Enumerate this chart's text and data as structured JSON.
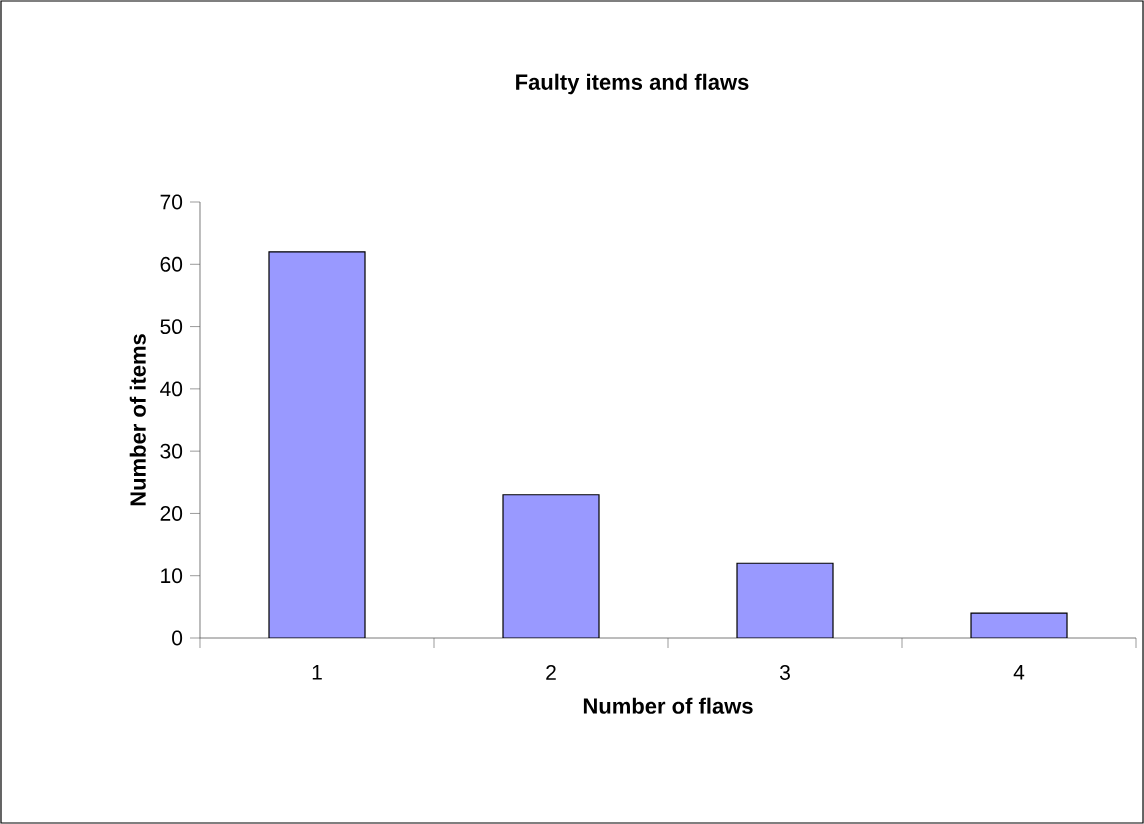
{
  "chart_data": {
    "type": "bar",
    "title": "Faulty items and flaws",
    "xlabel": "Number of flaws",
    "ylabel": "Number of items",
    "categories": [
      "1",
      "2",
      "3",
      "4"
    ],
    "values": [
      62,
      23,
      12,
      4
    ],
    "color": "#9999ff",
    "ylim": [
      0,
      70
    ],
    "yticks": [
      0,
      10,
      20,
      30,
      40,
      50,
      60,
      70
    ],
    "grid": false
  }
}
